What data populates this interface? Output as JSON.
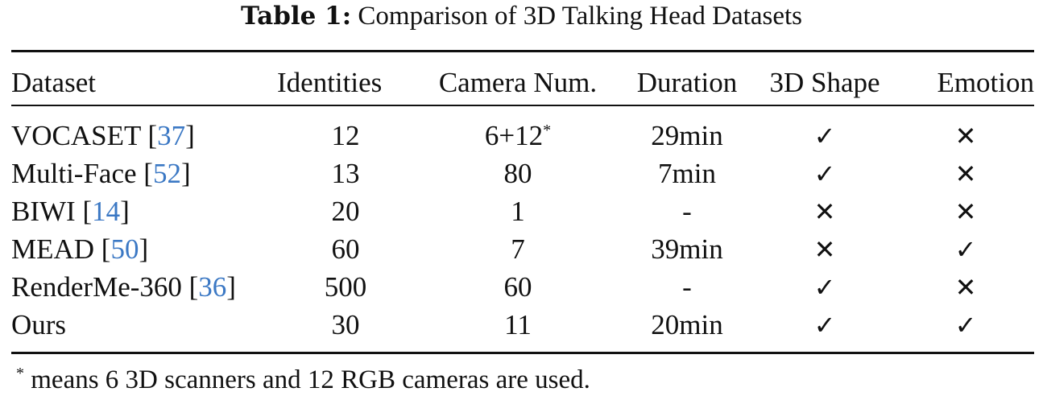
{
  "caption": {
    "label": "Table 1:",
    "text": "Comparison of 3D Talking Head Datasets"
  },
  "table": {
    "headers": [
      "Dataset",
      "Identities",
      "Camera Num.",
      "Duration",
      "3D Shape",
      "Emotion"
    ],
    "rows": [
      {
        "name": "VOCASET [",
        "ref": "37",
        "close": "]",
        "identities": "12",
        "camera": "6+12",
        "camera_sup": "*",
        "duration": "29min",
        "shape": "✓",
        "emotion": "✕"
      },
      {
        "name": "Multi-Face [",
        "ref": "52",
        "close": "]",
        "identities": "13",
        "camera": "80",
        "camera_sup": "",
        "duration": "7min",
        "shape": "✓",
        "emotion": "✕"
      },
      {
        "name": "BIWI [",
        "ref": "14",
        "close": "]",
        "identities": "20",
        "camera": "1",
        "camera_sup": "",
        "duration": "-",
        "shape": "✕",
        "emotion": "✕"
      },
      {
        "name": "MEAD [",
        "ref": "50",
        "close": "]",
        "identities": "60",
        "camera": "7",
        "camera_sup": "",
        "duration": "39min",
        "shape": "✕",
        "emotion": "✓"
      },
      {
        "name": "RenderMe-360 [",
        "ref": "36",
        "close": "]",
        "identities": "500",
        "camera": "60",
        "camera_sup": "",
        "duration": "-",
        "shape": "✓",
        "emotion": "✕"
      },
      {
        "name": "Ours",
        "ref": "",
        "close": "",
        "identities": "30",
        "camera": "11",
        "camera_sup": "",
        "duration": "20min",
        "shape": "✓",
        "emotion": "✓"
      }
    ]
  },
  "footnote": {
    "mark": "*",
    "text": " means 6 3D scanners and 12 RGB cameras are used."
  },
  "colors": {
    "reference_link": "#3b78c4",
    "text": "#111111"
  }
}
